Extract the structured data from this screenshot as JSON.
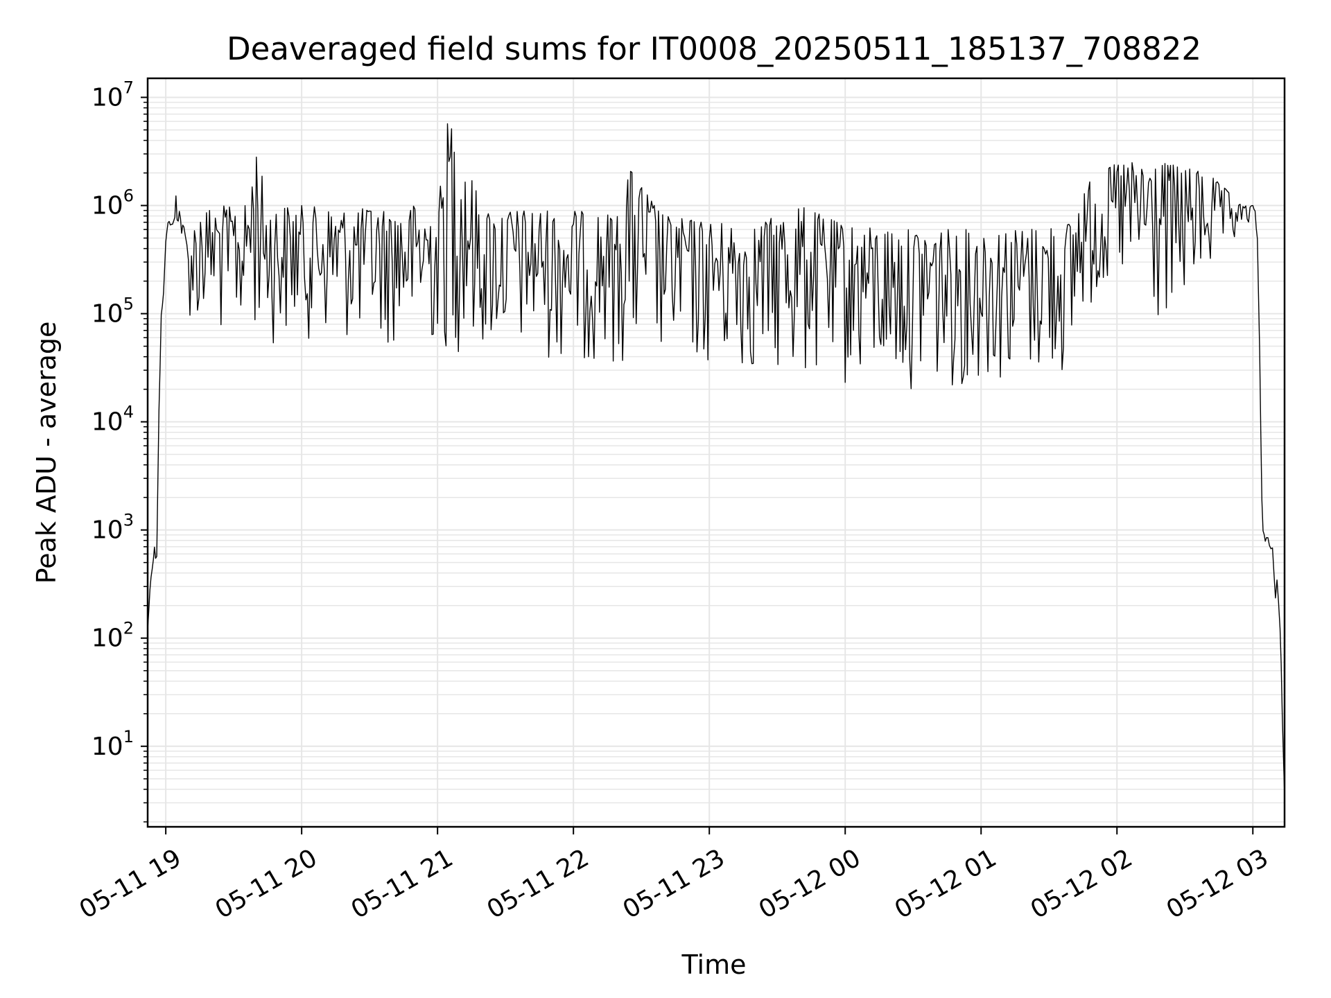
{
  "chart_data": {
    "type": "line",
    "title": "Deaveraged field sums for IT0008_20250511_185137_708822",
    "xlabel": "Time",
    "ylabel": "Peak ADU - average",
    "yscale": "log",
    "ylim": [
      1.8,
      15000000
    ],
    "xlim": [
      "2025-05-11 18:52",
      "2025-05-12 03:14"
    ],
    "grid": true,
    "line_color": "#000000",
    "grid_color": "#e6e6e6",
    "x_ticks": [
      {
        "value": "2025-05-11 19:00",
        "label": "05-11 19"
      },
      {
        "value": "2025-05-11 20:00",
        "label": "05-11 20"
      },
      {
        "value": "2025-05-11 21:00",
        "label": "05-11 21"
      },
      {
        "value": "2025-05-11 22:00",
        "label": "05-11 22"
      },
      {
        "value": "2025-05-11 23:00",
        "label": "05-11 23"
      },
      {
        "value": "2025-05-12 00:00",
        "label": "05-12 00"
      },
      {
        "value": "2025-05-12 01:00",
        "label": "05-12 01"
      },
      {
        "value": "2025-05-12 02:00",
        "label": "05-12 02"
      },
      {
        "value": "2025-05-12 03:00",
        "label": "05-12 03"
      }
    ],
    "y_ticks": [
      {
        "value": 10,
        "base": "10",
        "exp": "1"
      },
      {
        "value": 100,
        "base": "10",
        "exp": "2"
      },
      {
        "value": 1000,
        "base": "10",
        "exp": "3"
      },
      {
        "value": 10000,
        "base": "10",
        "exp": "4"
      },
      {
        "value": 100000,
        "base": "10",
        "exp": "5"
      },
      {
        "value": 1000000,
        "base": "10",
        "exp": "6"
      },
      {
        "value": 10000000,
        "base": "10",
        "exp": "7"
      }
    ],
    "series": [
      {
        "x": [
          "2025-05-11 18:52",
          "2025-05-11 18:53",
          "2025-05-11 18:54",
          "2025-05-11 18:55",
          "2025-05-11 18:56",
          "2025-05-11 18:57",
          "2025-05-11 18:58",
          "2025-05-11 18:59",
          "2025-05-11 19:00",
          "2025-05-11 19:01",
          "2025-05-11 19:02",
          "2025-05-11 19:03",
          "2025-05-11 19:04",
          "2025-05-11 19:05",
          "2025-05-11 19:06",
          "2025-05-11 19:07",
          "2025-05-11 19:08",
          "2025-05-11 19:10",
          "2025-05-11 19:12",
          "2025-05-11 19:14",
          "2025-05-11 19:16",
          "2025-05-11 19:18",
          "2025-05-11 19:20",
          "2025-05-11 19:25",
          "2025-05-11 19:30",
          "2025-05-11 19:35",
          "2025-05-11 19:40",
          "2025-05-11 19:45",
          "2025-05-11 19:50",
          "2025-05-11 19:55",
          "2025-05-11 20:00",
          "2025-05-11 20:10",
          "2025-05-11 20:20",
          "2025-05-11 20:30",
          "2025-05-11 20:40",
          "2025-05-11 20:50",
          "2025-05-11 21:00",
          "2025-05-11 21:05",
          "2025-05-11 21:20",
          "2025-05-11 21:40",
          "2025-05-11 22:00",
          "2025-05-11 22:20",
          "2025-05-11 22:24",
          "2025-05-11 22:40",
          "2025-05-11 23:00",
          "2025-05-11 23:20",
          "2025-05-11 23:40",
          "2025-05-12 00:00",
          "2025-05-12 00:20",
          "2025-05-12 00:40",
          "2025-05-12 01:00",
          "2025-05-12 01:20",
          "2025-05-12 01:40",
          "2025-05-12 01:45",
          "2025-05-12 02:00",
          "2025-05-12 02:20",
          "2025-05-12 02:40",
          "2025-05-12 02:50",
          "2025-05-12 02:55",
          "2025-05-12 03:00",
          "2025-05-12 03:01",
          "2025-05-12 03:02",
          "2025-05-12 03:03",
          "2025-05-12 03:04",
          "2025-05-12 03:05",
          "2025-05-12 03:06",
          "2025-05-12 03:08",
          "2025-05-12 03:10",
          "2025-05-12 03:12",
          "2025-05-12 03:13",
          "2025-05-12 03:14"
        ],
        "upper": [
          120,
          300,
          450,
          700,
          600,
          13000,
          100000,
          160000,
          500000,
          700000,
          750000,
          700000,
          800000,
          2500000,
          1000000,
          700000,
          650000,
          500000,
          600000,
          900000,
          1000000,
          900000,
          950000,
          1000000,
          950000,
          1000000,
          3500000,
          1000000,
          950000,
          1000000,
          1000000,
          950000,
          900000,
          950000,
          900000,
          1000000,
          900000,
          7500000,
          900000,
          900000,
          900000,
          800000,
          2300000,
          800000,
          700000,
          650000,
          1000000,
          650000,
          600000,
          600000,
          600000,
          600000,
          700000,
          1500000,
          2500000,
          2500000,
          2000000,
          1300000,
          1000000,
          1000000,
          900000,
          500000,
          50000,
          2000,
          1000,
          900,
          800,
          500,
          200,
          20,
          4
        ],
        "lower": [
          120,
          250,
          400,
          550,
          500,
          12000,
          90000,
          150000,
          450000,
          650000,
          650000,
          600000,
          600000,
          600000,
          550000,
          500000,
          300000,
          100000,
          70000,
          60000,
          70000,
          70000,
          60000,
          60000,
          55000,
          60000,
          65000,
          55000,
          50000,
          60000,
          60000,
          55000,
          55000,
          50000,
          50000,
          45000,
          45000,
          40000,
          45000,
          40000,
          35000,
          35000,
          30000,
          35000,
          30000,
          28000,
          25000,
          20000,
          20000,
          20000,
          22000,
          25000,
          25000,
          100000,
          150000,
          60000,
          200000,
          300000,
          600000,
          700000,
          800000,
          400000,
          40000,
          1500,
          600,
          500,
          400,
          200,
          120,
          15,
          3.5
        ]
      }
    ]
  }
}
